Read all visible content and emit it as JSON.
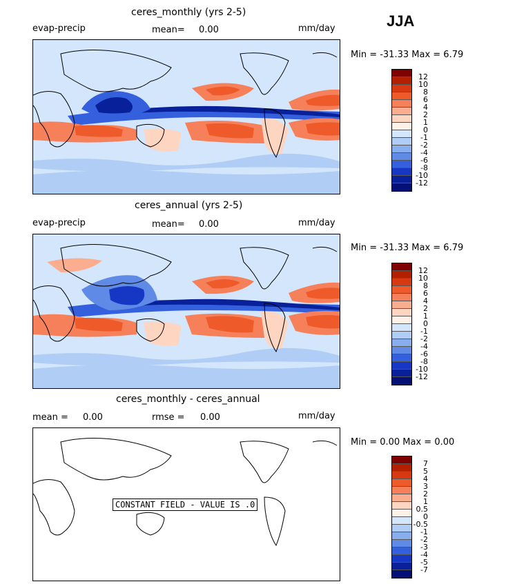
{
  "season": "JJA",
  "panels": [
    {
      "title": "ceres_monthly (yrs 2-5)",
      "left_label": "evap-precip",
      "mean_label": "mean=",
      "mean_value": "0.00",
      "units": "mm/day",
      "minmax": "Min = -31.33 Max =    6.79",
      "colorbar_labels": [
        "12",
        "10",
        "8",
        "6",
        "4",
        "2",
        "1",
        "0",
        "-1",
        "-2",
        "-4",
        "-6",
        "-8",
        "-10",
        "-12"
      ]
    },
    {
      "title": "ceres_annual (yrs 2-5)",
      "left_label": "evap-precip",
      "mean_label": "mean=",
      "mean_value": "0.00",
      "units": "mm/day",
      "minmax": "Min = -31.33 Max =    6.79",
      "colorbar_labels": [
        "12",
        "10",
        "8",
        "6",
        "4",
        "2",
        "1",
        "0",
        "-1",
        "-2",
        "-4",
        "-6",
        "-8",
        "-10",
        "-12"
      ]
    },
    {
      "title": "ceres_monthly - ceres_annual",
      "mean_label": "mean =",
      "mean_value": "0.00",
      "rmse_label": "rmse =",
      "rmse_value": "0.00",
      "units": "mm/day",
      "minmax": "Min =    0.00 Max =    0.00",
      "constant_note": "CONSTANT FIELD - VALUE IS .0",
      "colorbar_labels": [
        "7",
        "5",
        "4",
        "3",
        "2",
        "1",
        "0.5",
        "0",
        "-0.5",
        "-1",
        "-2",
        "-3",
        "-4",
        "-5",
        "-7"
      ]
    }
  ],
  "colors": {
    "scale": [
      "#7f0000",
      "#b22000",
      "#d73a12",
      "#ef5a2a",
      "#f6805a",
      "#fbae8f",
      "#fdd5c0",
      "#fdf1e8",
      "#d3e6fb",
      "#b0cdf5",
      "#89aeee",
      "#5f8ae6",
      "#3560dd",
      "#1537c4",
      "#08209a",
      "#041075"
    ]
  }
}
